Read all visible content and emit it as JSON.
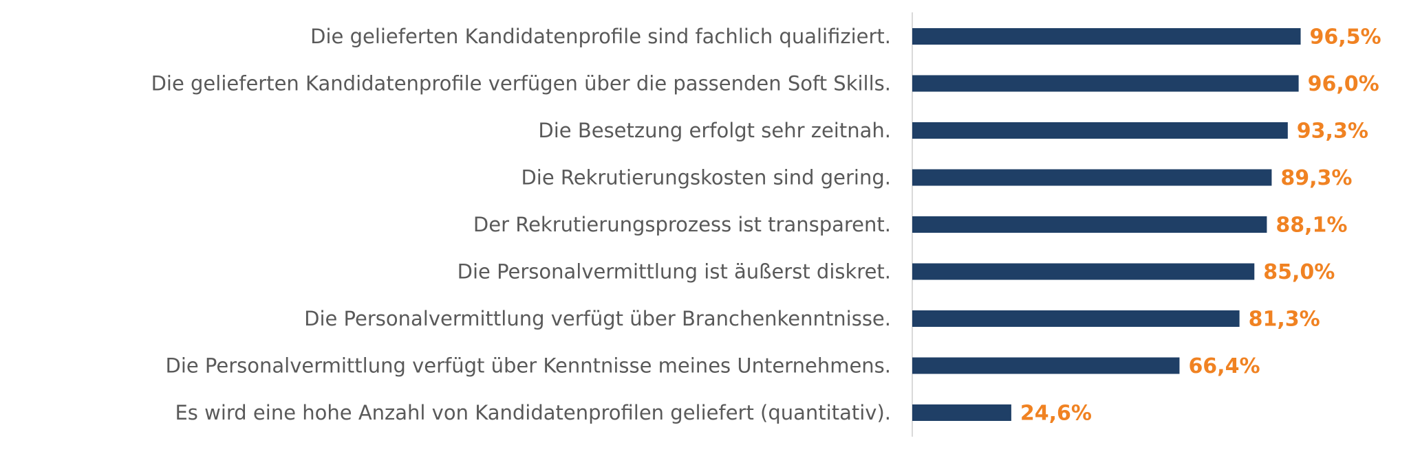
{
  "chart_data": {
    "type": "bar",
    "orientation": "horizontal",
    "categories": [
      "Die gelieferten Kandidatenprofile sind fachlich qualifiziert.",
      "Die gelieferten Kandidatenprofile verfügen über die passenden Soft Skills.",
      "Die Besetzung erfolgt sehr zeitnah.",
      "Die Rekrutierungskosten sind gering.",
      "Der Rekrutierungsprozess ist transparent.",
      "Die Personalvermittlung ist äußerst diskret.",
      "Die Personalvermittlung verfügt über Branchenkenntnisse.",
      "Die Personalvermittlung verfügt über Kenntnisse meines Unternehmens.",
      "Es wird eine hohe Anzahl von Kandidatenprofilen geliefert (quantitativ)."
    ],
    "values": [
      96.5,
      96.0,
      93.3,
      89.3,
      88.1,
      85.0,
      81.3,
      66.4,
      24.6
    ],
    "value_labels": [
      "96,5%",
      "96,0%",
      "93,3%",
      "89,3%",
      "88,1%",
      "85,0%",
      "81,3%",
      "66,4%",
      "24,6%"
    ],
    "xlim": [
      0,
      100
    ],
    "grid": false,
    "legend": "none",
    "colors": {
      "bar": "#1f3f66",
      "value_label": "#f08222",
      "category_label": "#595959",
      "axis_line": "#d9d9d9"
    }
  }
}
